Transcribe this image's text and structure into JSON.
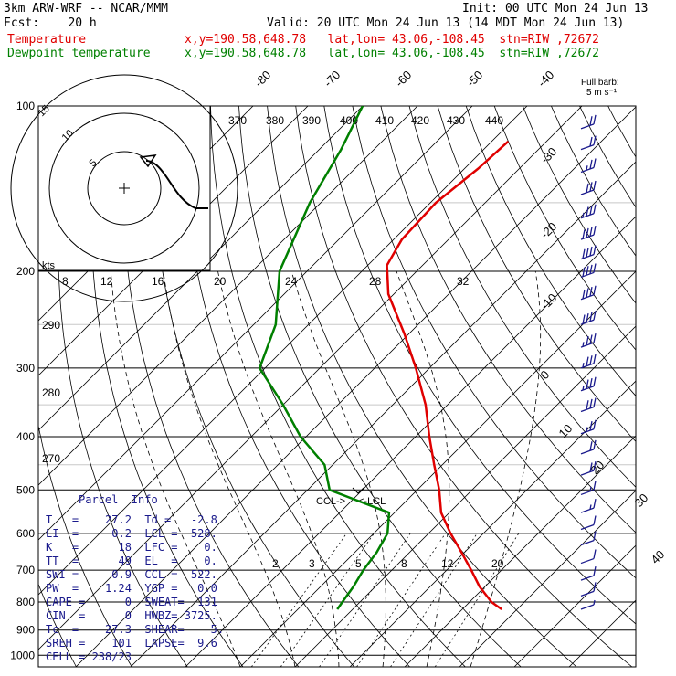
{
  "header": {
    "model": "3km ARW-WRF -- NCAR/MMM",
    "init": "Init: 00 UTC Mon 24 Jun 13",
    "fcst": "Fcst:    20 h",
    "valid": "Valid: 20 UTC Mon 24 Jun 13 (14 MDT Mon 24 Jun 13)",
    "temp_label": "Temperature",
    "dew_label": "Dewpoint temperature",
    "temp_loc": "x,y=190.58,648.78   lat,lon= 43.06,-108.45  stn=RIW ,72672",
    "dew_loc": "x,y=190.58,648.78   lat,lon= 43.06,-108.45  stn=RIW ,72672",
    "barb_label_1": "Full barb:",
    "barb_label_2": "5 m s⁻¹"
  },
  "colors": {
    "temp": "#e00000",
    "dew": "#008000",
    "barbs": "#1a1a8c",
    "grid": "#000000"
  },
  "chart_data": {
    "type": "line",
    "title": "3km ARW-WRF -- NCAR/MMM",
    "xlabel": "",
    "ylabel": "",
    "pressure_levels": [
      100,
      200,
      300,
      400,
      500,
      600,
      700,
      800,
      900,
      1000
    ],
    "pressure_tick_labels": [
      "100",
      "200",
      "300",
      "400",
      "500",
      "600",
      "700",
      "800",
      "900",
      "1000"
    ],
    "isotherm_labels": [
      "-80",
      "-70",
      "-60",
      "-50",
      "-40",
      "-30",
      "-20",
      "-10",
      "0",
      "10",
      "20",
      "30",
      "40"
    ],
    "theta_e_labels": [
      "370",
      "380",
      "390",
      "400",
      "410",
      "420",
      "430",
      "440"
    ],
    "theta_labels": [
      "290",
      "280",
      "270"
    ],
    "mixing_ratio_labels": [
      "2",
      "3",
      "5",
      "8",
      "12",
      "20"
    ],
    "hodo_speed_labels": [
      "8",
      "12",
      "16",
      "20",
      "24",
      "28",
      "32"
    ],
    "hodo_ring_labels": [
      "5",
      "10",
      "15"
    ],
    "hodo_units": "kts",
    "annotations": [
      "CCL->",
      "<-LCL"
    ],
    "series": [
      {
        "name": "Temperature",
        "color": "#e00000",
        "points": [
          {
            "p": 116,
            "t": -57.0
          },
          {
            "p": 130,
            "t": -57.5
          },
          {
            "p": 150,
            "t": -59.0
          },
          {
            "p": 175,
            "t": -58.5
          },
          {
            "p": 195,
            "t": -56.5
          },
          {
            "p": 220,
            "t": -51.0
          },
          {
            "p": 260,
            "t": -40.8
          },
          {
            "p": 300,
            "t": -32.5
          },
          {
            "p": 350,
            "t": -24.0
          },
          {
            "p": 400,
            "t": -17.5
          },
          {
            "p": 450,
            "t": -11.5
          },
          {
            "p": 500,
            "t": -6.0
          },
          {
            "p": 550,
            "t": -1.5
          },
          {
            "p": 600,
            "t": 4.0
          },
          {
            "p": 650,
            "t": 9.5
          },
          {
            "p": 700,
            "t": 14.5
          },
          {
            "p": 750,
            "t": 19.0
          },
          {
            "p": 800,
            "t": 24.0
          },
          {
            "p": 825,
            "t": 27.2
          }
        ]
      },
      {
        "name": "Dewpoint temperature",
        "color": "#008000",
        "points": [
          {
            "p": 100,
            "t": -90.0
          },
          {
            "p": 120,
            "t": -86.0
          },
          {
            "p": 150,
            "t": -82.0
          },
          {
            "p": 200,
            "t": -75.0
          },
          {
            "p": 250,
            "t": -66.0
          },
          {
            "p": 300,
            "t": -61.0
          },
          {
            "p": 350,
            "t": -50.0
          },
          {
            "p": 400,
            "t": -41.0
          },
          {
            "p": 450,
            "t": -31.5
          },
          {
            "p": 500,
            "t": -26.0
          },
          {
            "p": 550,
            "t": -11.0
          },
          {
            "p": 600,
            "t": -7.5
          },
          {
            "p": 650,
            "t": -6.0
          },
          {
            "p": 700,
            "t": -5.2
          },
          {
            "p": 750,
            "t": -4.0
          },
          {
            "p": 800,
            "t": -3.2
          },
          {
            "p": 825,
            "t": -2.8
          }
        ]
      }
    ],
    "wind_barbs": [
      {
        "p": 110,
        "speed_ms": 10
      },
      {
        "p": 120,
        "speed_ms": 12
      },
      {
        "p": 132,
        "speed_ms": 14
      },
      {
        "p": 145,
        "speed_ms": 16
      },
      {
        "p": 160,
        "speed_ms": 18
      },
      {
        "p": 175,
        "speed_ms": 20
      },
      {
        "p": 190,
        "speed_ms": 20
      },
      {
        "p": 205,
        "speed_ms": 20
      },
      {
        "p": 225,
        "speed_ms": 20
      },
      {
        "p": 250,
        "speed_ms": 20
      },
      {
        "p": 275,
        "speed_ms": 19
      },
      {
        "p": 300,
        "speed_ms": 18
      },
      {
        "p": 330,
        "speed_ms": 18
      },
      {
        "p": 360,
        "speed_ms": 16
      },
      {
        "p": 395,
        "speed_ms": 14
      },
      {
        "p": 430,
        "speed_ms": 12
      },
      {
        "p": 470,
        "speed_ms": 10
      },
      {
        "p": 510,
        "speed_ms": 8
      },
      {
        "p": 550,
        "speed_ms": 8
      },
      {
        "p": 590,
        "speed_ms": 7
      },
      {
        "p": 630,
        "speed_ms": 6
      },
      {
        "p": 680,
        "speed_ms": 6
      },
      {
        "p": 730,
        "speed_ms": 5
      },
      {
        "p": 780,
        "speed_ms": 5
      },
      {
        "p": 825,
        "speed_ms": 4
      }
    ]
  },
  "parcel_info": {
    "title": "Parcel  Info",
    "rows": [
      "T   =    27.2  Td =   -2.8",
      "LI  =     0.2  LCL =  528.",
      "K   =      18  LFC =    0.",
      "TT  =      49  EL  =    0.",
      "SWI =     0.9  CCL =  522.",
      "PW  =    1.24  YGP =   0.0",
      "CAPE =      0  SWEAT=  131",
      "CIN  =      0  HWBZ= 3725.",
      "Tc  =    27.3  SHEAR=    5.",
      "SREH =    101  LAPSE=  9.6",
      "CELL = 238/23"
    ]
  }
}
